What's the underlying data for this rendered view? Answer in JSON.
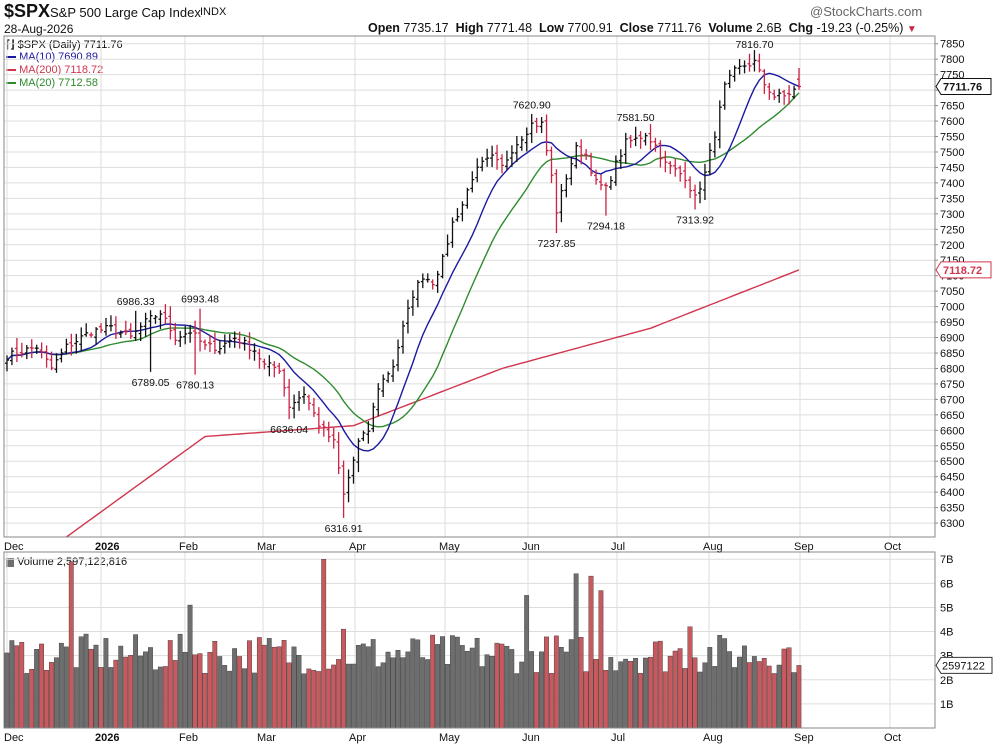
{
  "header": {
    "symbol": "$SPX",
    "name": "S&P 500 Large Cap Index",
    "exchange": "INDX",
    "date": "28-Aug-2026",
    "open_label": "Open",
    "open": "7735.17",
    "high_label": "High",
    "high": "7771.48",
    "low_label": "Low",
    "low": "7700.91",
    "close_label": "Close",
    "close": "7711.76",
    "volume_label": "Volume",
    "volume": "2.6B",
    "chg_label": "Chg",
    "chg": "-19.23 (-0.25%)",
    "chg_icon": "down-triangle-icon",
    "brand": "@StockCharts.com"
  },
  "legend": {
    "price": "$SPX (Daily) 7711.76",
    "ma10": "MA(10) 7690.89",
    "ma200": "MA(200) 7118.72",
    "ma20": "MA(20) 7712.58",
    "volume": "Volume 2,597,122,816"
  },
  "colors": {
    "up": "#111111",
    "down": "#cc2244",
    "ma10": "#1a1aa0",
    "ma200": "#d0364f",
    "ma20": "#2e8b2e",
    "vol_up": "#6e6e6e",
    "vol_down": "#c8595f",
    "grid": "#dddddd"
  },
  "chart_data": [
    {
      "type": "ohlc",
      "title": "$SPX (Daily) 7711.76",
      "x_months": [
        "Dec",
        "2026",
        "Feb",
        "Mar",
        "Apr",
        "May",
        "Jun",
        "Jul",
        "Aug",
        "Sep",
        "Oct"
      ],
      "y_ticks": [
        6300,
        6350,
        6400,
        6450,
        6500,
        6550,
        6600,
        6650,
        6700,
        6750,
        6800,
        6850,
        6900,
        6950,
        7000,
        7050,
        7100,
        7150,
        7200,
        7250,
        7300,
        7350,
        7400,
        7450,
        7500,
        7550,
        7600,
        7650,
        7700,
        7750,
        7800,
        7850
      ],
      "ylim": [
        6255,
        7875
      ],
      "grid": true,
      "price_anchors": [
        [
          0,
          6840
        ],
        [
          6,
          6870
        ],
        [
          9,
          6800
        ],
        [
          12,
          6870
        ],
        [
          17,
          6920
        ],
        [
          21,
          6930
        ],
        [
          25,
          6900
        ],
        [
          28,
          6950
        ],
        [
          31,
          6980
        ],
        [
          34,
          6900
        ],
        [
          37,
          6920
        ],
        [
          40,
          6870
        ],
        [
          43,
          6870
        ],
        [
          46,
          6900
        ],
        [
          50,
          6860
        ],
        [
          52,
          6810
        ],
        [
          55,
          6800
        ],
        [
          57,
          6680
        ],
        [
          60,
          6720
        ],
        [
          63,
          6620
        ],
        [
          66,
          6560
        ],
        [
          68,
          6390
        ],
        [
          71,
          6560
        ],
        [
          73,
          6600
        ],
        [
          75,
          6740
        ],
        [
          78,
          6810
        ],
        [
          80,
          6930
        ],
        [
          82,
          7040
        ],
        [
          84,
          7100
        ],
        [
          86,
          7080
        ],
        [
          88,
          7150
        ],
        [
          90,
          7270
        ],
        [
          92,
          7330
        ],
        [
          94,
          7420
        ],
        [
          96,
          7460
        ],
        [
          98,
          7480
        ],
        [
          100,
          7450
        ],
        [
          102,
          7510
        ],
        [
          104,
          7550
        ],
        [
          106,
          7590
        ],
        [
          108,
          7590
        ],
        [
          110,
          7420
        ],
        [
          111,
          7310
        ],
        [
          113,
          7420
        ],
        [
          115,
          7510
        ],
        [
          117,
          7490
        ],
        [
          119,
          7400
        ],
        [
          121,
          7380
        ],
        [
          123,
          7460
        ],
        [
          125,
          7530
        ],
        [
          127,
          7540
        ],
        [
          129,
          7560
        ],
        [
          131,
          7520
        ],
        [
          133,
          7460
        ],
        [
          135,
          7440
        ],
        [
          137,
          7420
        ],
        [
          139,
          7350
        ],
        [
          141,
          7430
        ],
        [
          143,
          7560
        ],
        [
          145,
          7710
        ],
        [
          147,
          7760
        ],
        [
          149,
          7780
        ],
        [
          151,
          7790
        ],
        [
          153,
          7720
        ],
        [
          155,
          7680
        ],
        [
          157,
          7680
        ],
        [
          159,
          7700
        ],
        [
          160,
          7712
        ]
      ],
      "last_bar": {
        "open": 7735.17,
        "high": 7771.48,
        "low": 7700.91,
        "close": 7711.76
      },
      "moving_averages": [
        {
          "name": "MA(10)",
          "last": 7690.89
        },
        {
          "name": "MA(200)",
          "last": 7118.72
        },
        {
          "name": "MA(20)",
          "last": 7712.58
        }
      ],
      "ma200_anchors": [
        [
          12,
          6255
        ],
        [
          40,
          6580
        ],
        [
          70,
          6615
        ],
        [
          100,
          6800
        ],
        [
          130,
          6930
        ],
        [
          160,
          7118.72
        ]
      ],
      "annotations": [
        {
          "bar": 26,
          "label": "6986.33",
          "above": true,
          "value": 6986.33
        },
        {
          "bar": 39,
          "label": "6993.48",
          "above": true,
          "value": 6993.48
        },
        {
          "bar": 29,
          "label": "6789.05",
          "above": false,
          "value": 6789.05
        },
        {
          "bar": 38,
          "label": "6780.13",
          "above": false,
          "value": 6780.13
        },
        {
          "bar": 57,
          "label": "6636.04",
          "above": false,
          "value": 6636.04
        },
        {
          "bar": 68,
          "label": "6316.91",
          "above": false,
          "value": 6316.91
        },
        {
          "bar": 106,
          "label": "7620.90",
          "above": true,
          "value": 7620.9
        },
        {
          "bar": 111,
          "label": "7237.85",
          "above": false,
          "value": 7237.85
        },
        {
          "bar": 121,
          "label": "7294.18",
          "above": false,
          "value": 7294.18
        },
        {
          "bar": 127,
          "label": "7581.50",
          "above": true,
          "value": 7581.5
        },
        {
          "bar": 139,
          "label": "7313.92",
          "above": false,
          "value": 7313.92
        },
        {
          "bar": 151,
          "label": "7816.70",
          "above": true,
          "value": 7816.7
        }
      ],
      "price_tags": [
        {
          "label": "7711.76",
          "value": 7711.76,
          "color": "#111111"
        },
        {
          "label": "7118.72",
          "value": 7118.72,
          "color": "#d0364f"
        }
      ]
    },
    {
      "type": "bar",
      "title": "Volume 2,597,122,816",
      "y_tick_labels": [
        "1B",
        "2B",
        "3B",
        "4B",
        "5B",
        "6B",
        "7B"
      ],
      "y_tick_values": [
        1,
        2,
        3,
        4,
        5,
        6,
        7
      ],
      "ylim": [
        0,
        7.3
      ],
      "last_value_label": "2597122",
      "last_value": 2.597,
      "typical_volume_billions": 3.0,
      "spikes": [
        {
          "bar": 13,
          "value": 6.9
        },
        {
          "bar": 37,
          "value": 5.1
        },
        {
          "bar": 64,
          "value": 7.0
        },
        {
          "bar": 68,
          "value": 4.1
        },
        {
          "bar": 105,
          "value": 5.5
        },
        {
          "bar": 115,
          "value": 6.4
        },
        {
          "bar": 118,
          "value": 6.3
        },
        {
          "bar": 120,
          "value": 5.7
        },
        {
          "bar": 138,
          "value": 4.2
        }
      ]
    }
  ]
}
